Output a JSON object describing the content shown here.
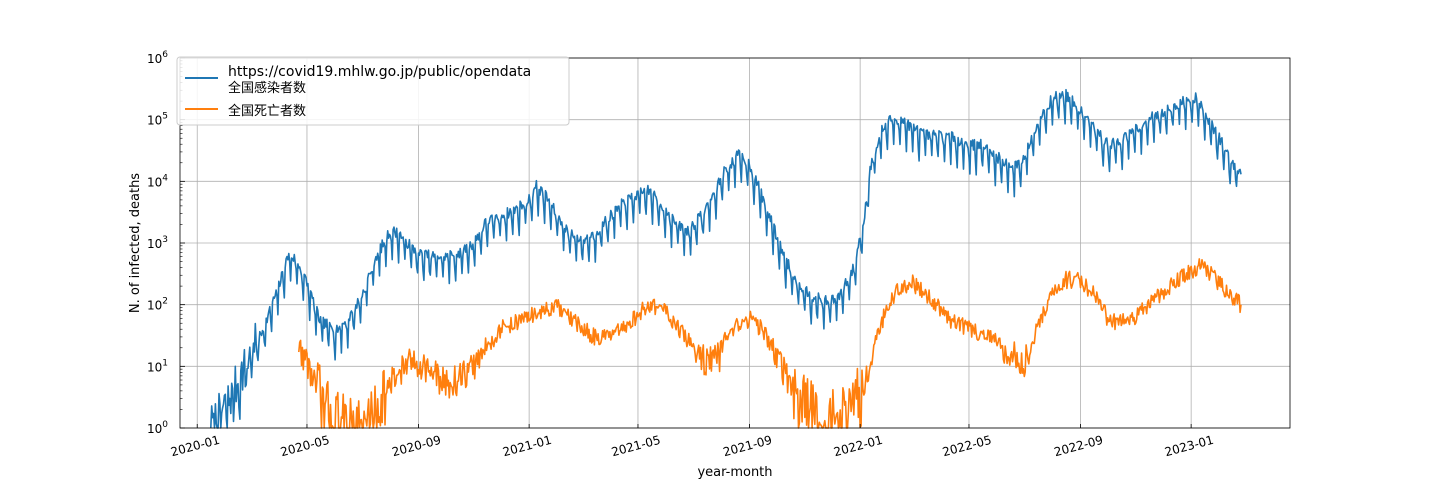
{
  "chart_data": {
    "type": "line",
    "xlabel": "year-month",
    "ylabel": "N. of infected, deaths",
    "yscale": "log",
    "ylim": [
      1,
      1000000
    ],
    "xlim": [
      "2019-12-13",
      "2023-04-20"
    ],
    "grid": true,
    "legend_position": "top-left",
    "legend_header": "https://covid19.mhlw.go.jp/public/opendata",
    "x_ticks": [
      "2020-01",
      "2020-05",
      "2020-09",
      "2021-01",
      "2021-05",
      "2021-09",
      "2022-01",
      "2022-05",
      "2022-09",
      "2023-01"
    ],
    "y_ticks": [
      {
        "value": 1,
        "base": "10",
        "exp": "0"
      },
      {
        "value": 10,
        "base": "10",
        "exp": "1"
      },
      {
        "value": 100,
        "base": "10",
        "exp": "2"
      },
      {
        "value": 1000,
        "base": "10",
        "exp": "3"
      },
      {
        "value": 10000,
        "base": "10",
        "exp": "4"
      },
      {
        "value": 100000,
        "base": "10",
        "exp": "5"
      },
      {
        "value": 1000000,
        "base": "10",
        "exp": "6"
      }
    ],
    "series": [
      {
        "name": "全国感染者数",
        "color": "#1f77b4",
        "points": [
          [
            "2020-01-16",
            1
          ],
          [
            "2020-02-01",
            2
          ],
          [
            "2020-02-15",
            5
          ],
          [
            "2020-03-01",
            15
          ],
          [
            "2020-03-15",
            40
          ],
          [
            "2020-04-01",
            200
          ],
          [
            "2020-04-11",
            600
          ],
          [
            "2020-04-20",
            450
          ],
          [
            "2020-05-01",
            200
          ],
          [
            "2020-05-15",
            50
          ],
          [
            "2020-06-01",
            35
          ],
          [
            "2020-06-15",
            50
          ],
          [
            "2020-07-01",
            130
          ],
          [
            "2020-07-15",
            500
          ],
          [
            "2020-08-01",
            1400
          ],
          [
            "2020-08-10",
            1300
          ],
          [
            "2020-08-20",
            900
          ],
          [
            "2020-09-01",
            600
          ],
          [
            "2020-09-15",
            550
          ],
          [
            "2020-10-01",
            550
          ],
          [
            "2020-10-15",
            600
          ],
          [
            "2020-11-01",
            900
          ],
          [
            "2020-11-15",
            2000
          ],
          [
            "2020-12-01",
            2500
          ],
          [
            "2020-12-15",
            3000
          ],
          [
            "2021-01-01",
            4500
          ],
          [
            "2021-01-09",
            7500
          ],
          [
            "2021-01-20",
            5000
          ],
          [
            "2021-02-01",
            2500
          ],
          [
            "2021-02-15",
            1300
          ],
          [
            "2021-03-01",
            1000
          ],
          [
            "2021-03-15",
            1300
          ],
          [
            "2021-04-01",
            2500
          ],
          [
            "2021-04-15",
            4000
          ],
          [
            "2021-05-01",
            5500
          ],
          [
            "2021-05-12",
            6500
          ],
          [
            "2021-05-25",
            4000
          ],
          [
            "2021-06-10",
            2000
          ],
          [
            "2021-06-25",
            1400
          ],
          [
            "2021-07-10",
            2500
          ],
          [
            "2021-07-25",
            6000
          ],
          [
            "2021-08-05",
            14000
          ],
          [
            "2021-08-20",
            24000
          ],
          [
            "2021-09-01",
            17000
          ],
          [
            "2021-09-10",
            8000
          ],
          [
            "2021-09-25",
            2000
          ],
          [
            "2021-10-10",
            500
          ],
          [
            "2021-10-25",
            200
          ],
          [
            "2021-11-10",
            120
          ],
          [
            "2021-11-25",
            100
          ],
          [
            "2021-12-10",
            130
          ],
          [
            "2021-12-25",
            350
          ],
          [
            "2022-01-05",
            2000
          ],
          [
            "2022-01-12",
            15000
          ],
          [
            "2022-01-25",
            60000
          ],
          [
            "2022-02-05",
            95000
          ],
          [
            "2022-02-15",
            90000
          ],
          [
            "2022-03-01",
            65000
          ],
          [
            "2022-03-15",
            50000
          ],
          [
            "2022-04-01",
            50000
          ],
          [
            "2022-04-15",
            45000
          ],
          [
            "2022-05-01",
            35000
          ],
          [
            "2022-05-15",
            35000
          ],
          [
            "2022-06-01",
            22000
          ],
          [
            "2022-06-20",
            15000
          ],
          [
            "2022-07-01",
            22000
          ],
          [
            "2022-07-15",
            80000
          ],
          [
            "2022-08-01",
            200000
          ],
          [
            "2022-08-15",
            230000
          ],
          [
            "2022-09-01",
            130000
          ],
          [
            "2022-09-15",
            70000
          ],
          [
            "2022-10-01",
            35000
          ],
          [
            "2022-10-15",
            40000
          ],
          [
            "2022-11-01",
            65000
          ],
          [
            "2022-11-15",
            90000
          ],
          [
            "2022-12-01",
            120000
          ],
          [
            "2022-12-15",
            160000
          ],
          [
            "2023-01-01",
            190000
          ],
          [
            "2023-01-08",
            210000
          ],
          [
            "2023-01-20",
            90000
          ],
          [
            "2023-02-01",
            45000
          ],
          [
            "2023-02-15",
            18000
          ],
          [
            "2023-02-25",
            13000
          ]
        ]
      },
      {
        "name": "全国死亡者数",
        "color": "#ff7f0e",
        "points": [
          [
            "2020-04-22",
            20
          ],
          [
            "2020-05-01",
            12
          ],
          [
            "2020-05-10",
            5
          ],
          [
            "2020-05-20",
            2
          ],
          [
            "2020-06-01",
            1.2
          ],
          [
            "2020-06-15",
            1
          ],
          [
            "2020-07-01",
            1
          ],
          [
            "2020-07-15",
            2
          ],
          [
            "2020-08-01",
            5
          ],
          [
            "2020-08-15",
            10
          ],
          [
            "2020-09-01",
            12
          ],
          [
            "2020-09-15",
            8
          ],
          [
            "2020-10-01",
            5
          ],
          [
            "2020-10-15",
            6
          ],
          [
            "2020-11-01",
            10
          ],
          [
            "2020-11-15",
            20
          ],
          [
            "2020-12-01",
            40
          ],
          [
            "2020-12-15",
            50
          ],
          [
            "2021-01-01",
            65
          ],
          [
            "2021-01-20",
            80
          ],
          [
            "2021-02-01",
            90
          ],
          [
            "2021-02-15",
            60
          ],
          [
            "2021-03-01",
            40
          ],
          [
            "2021-03-15",
            30
          ],
          [
            "2021-04-01",
            30
          ],
          [
            "2021-04-15",
            40
          ],
          [
            "2021-05-01",
            70
          ],
          [
            "2021-05-15",
            100
          ],
          [
            "2021-06-01",
            80
          ],
          [
            "2021-06-15",
            40
          ],
          [
            "2021-07-01",
            20
          ],
          [
            "2021-07-15",
            12
          ],
          [
            "2021-08-01",
            15
          ],
          [
            "2021-08-15",
            40
          ],
          [
            "2021-09-01",
            60
          ],
          [
            "2021-09-15",
            40
          ],
          [
            "2021-10-01",
            15
          ],
          [
            "2021-10-15",
            5
          ],
          [
            "2021-11-01",
            2
          ],
          [
            "2021-11-15",
            1.5
          ],
          [
            "2021-12-01",
            1.2
          ],
          [
            "2021-12-15",
            1.5
          ],
          [
            "2022-01-01",
            3
          ],
          [
            "2022-01-15",
            20
          ],
          [
            "2022-02-01",
            100
          ],
          [
            "2022-02-15",
            200
          ],
          [
            "2022-03-01",
            220
          ],
          [
            "2022-03-15",
            150
          ],
          [
            "2022-04-01",
            80
          ],
          [
            "2022-04-15",
            50
          ],
          [
            "2022-05-01",
            40
          ],
          [
            "2022-05-15",
            35
          ],
          [
            "2022-06-01",
            25
          ],
          [
            "2022-06-15",
            15
          ],
          [
            "2022-07-01",
            12
          ],
          [
            "2022-07-15",
            40
          ],
          [
            "2022-08-01",
            150
          ],
          [
            "2022-08-15",
            250
          ],
          [
            "2022-09-01",
            260
          ],
          [
            "2022-09-15",
            150
          ],
          [
            "2022-10-01",
            60
          ],
          [
            "2022-10-15",
            50
          ],
          [
            "2022-11-01",
            60
          ],
          [
            "2022-11-15",
            100
          ],
          [
            "2022-12-01",
            150
          ],
          [
            "2022-12-15",
            250
          ],
          [
            "2023-01-01",
            350
          ],
          [
            "2023-01-10",
            450
          ],
          [
            "2023-01-25",
            300
          ],
          [
            "2023-02-10",
            150
          ],
          [
            "2023-02-25",
            100
          ]
        ]
      }
    ]
  }
}
